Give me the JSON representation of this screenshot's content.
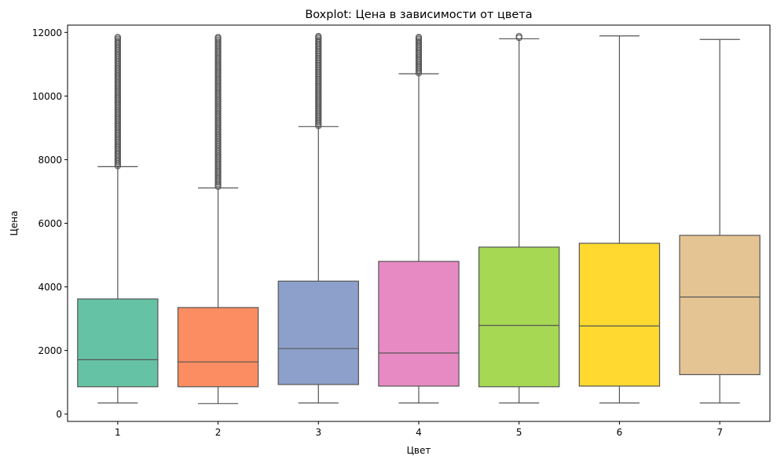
{
  "chart_data": {
    "type": "boxplot",
    "title": "Boxplot: Цена в зависимости от цвета",
    "xlabel": "Цвет",
    "ylabel": "Цена",
    "ylim": [
      -230,
      12230
    ],
    "yticks": [
      0,
      2000,
      4000,
      6000,
      8000,
      10000,
      12000
    ],
    "categories": [
      "1",
      "2",
      "3",
      "4",
      "5",
      "6",
      "7"
    ],
    "colors": [
      "#66c2a5",
      "#fc8d62",
      "#8da0cb",
      "#e78ac3",
      "#a6d854",
      "#ffd92f",
      "#e5c494"
    ],
    "edge_color": "#555555",
    "grid": false,
    "boxes": [
      {
        "category": "1",
        "whislo": 350,
        "q1": 860,
        "med": 1710,
        "q3": 3620,
        "whishi": 7780,
        "fliers_from": 7800,
        "fliers_to": 11850
      },
      {
        "category": "2",
        "whislo": 330,
        "q1": 860,
        "med": 1640,
        "q3": 3350,
        "whishi": 7110,
        "fliers_from": 7150,
        "fliers_to": 11850
      },
      {
        "category": "3",
        "whislo": 350,
        "q1": 930,
        "med": 2060,
        "q3": 4180,
        "whishi": 9040,
        "fliers_from": 9060,
        "fliers_to": 11880
      },
      {
        "category": "4",
        "whislo": 350,
        "q1": 880,
        "med": 1920,
        "q3": 4800,
        "whishi": 10700,
        "fliers_from": 10720,
        "fliers_to": 11850
      },
      {
        "category": "5",
        "whislo": 350,
        "q1": 860,
        "med": 2790,
        "q3": 5250,
        "whishi": 11800,
        "fliers_from": 11830,
        "fliers_to": 11880
      },
      {
        "category": "6",
        "whislo": 350,
        "q1": 880,
        "med": 2770,
        "q3": 5370,
        "whishi": 11890,
        "fliers_from": null,
        "fliers_to": null
      },
      {
        "category": "7",
        "whislo": 350,
        "q1": 1240,
        "med": 3680,
        "q3": 5620,
        "whishi": 11780,
        "fliers_from": null,
        "fliers_to": null
      }
    ]
  }
}
